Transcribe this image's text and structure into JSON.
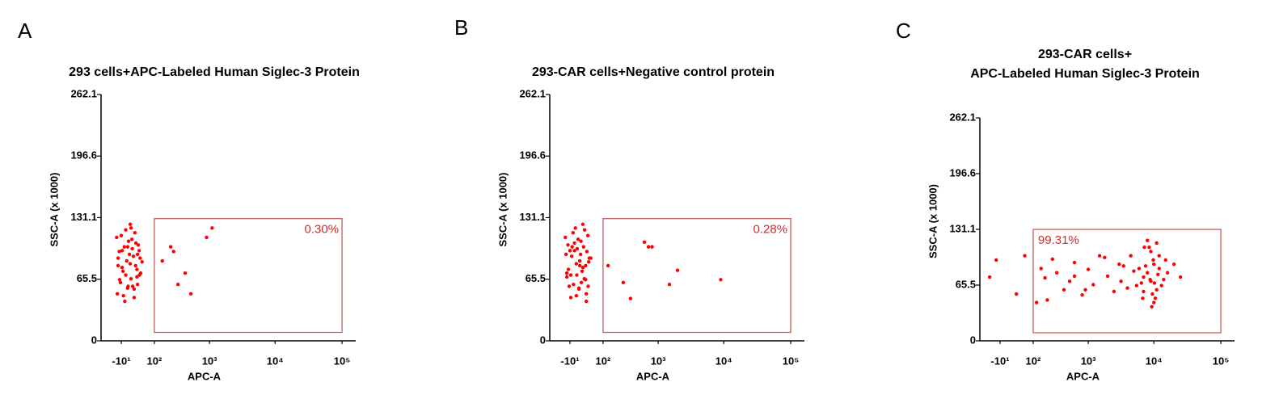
{
  "chart_data": [
    {
      "type": "scatter",
      "panel_label": "A",
      "title": [
        "293 cells+APC-Labeled Human Siglec-3 Protein"
      ],
      "x_label": "APC-A",
      "y_label": "SSC-A (x 1000)",
      "x_scale": "biexponential",
      "color": "#ff0000",
      "xlim": [
        -80,
        160000
      ],
      "ylim": [
        0,
        262.1
      ],
      "xticks": [
        {
          "value": -10,
          "label": "-10¹"
        },
        {
          "value": 100,
          "label": "10²"
        },
        {
          "value": 1000,
          "label": "10³"
        },
        {
          "value": 10000,
          "label": "10⁴"
        },
        {
          "value": 100000,
          "label": "10⁵"
        }
      ],
      "yticks": [
        0,
        65.5,
        131.1,
        196.6,
        262.1
      ],
      "gate": {
        "x": [
          100,
          100000
        ],
        "y": [
          9,
          130
        ],
        "percent": {
          "value": 0.3,
          "label": "0.30%"
        },
        "label_corner": "top-right",
        "color": "#c0504d"
      },
      "x": [
        -20,
        -12,
        -5,
        0,
        5,
        12,
        20,
        30,
        40,
        -18,
        -8,
        2,
        10,
        18,
        28,
        38,
        -15,
        -3,
        8,
        15,
        25,
        35,
        -22,
        -10,
        0,
        6,
        14,
        22,
        32,
        45,
        -14,
        -6,
        4,
        12,
        20,
        28,
        -18,
        -2,
        10,
        24,
        36,
        -8,
        4,
        16,
        30,
        150,
        220,
        300,
        400,
        500,
        900,
        1100,
        250
      ],
      "y": [
        50,
        62,
        48,
        70,
        58,
        66,
        55,
        60,
        72,
        80,
        78,
        85,
        82,
        90,
        76,
        88,
        95,
        100,
        92,
        98,
        104,
        96,
        110,
        112,
        118,
        106,
        108,
        115,
        102,
        84,
        65,
        74,
        56,
        120,
        46,
        68,
        88,
        42,
        124,
        80,
        70,
        96,
        100,
        58,
        92,
        85,
        100,
        60,
        72,
        50,
        110,
        120,
        95
      ]
    },
    {
      "type": "scatter",
      "panel_label": "B",
      "title": [
        "293-CAR cells+Negative control protein"
      ],
      "x_label": "APC-A",
      "y_label": "SSC-A (x 1000)",
      "x_scale": "biexponential",
      "color": "#ff0000",
      "xlim": [
        -80,
        160000
      ],
      "ylim": [
        0,
        262.1
      ],
      "xticks": [
        {
          "value": -10,
          "label": "-10¹"
        },
        {
          "value": 100,
          "label": "10²"
        },
        {
          "value": 1000,
          "label": "10³"
        },
        {
          "value": 10000,
          "label": "10⁴"
        },
        {
          "value": 100000,
          "label": "10⁵"
        }
      ],
      "yticks": [
        0,
        65.5,
        131.1,
        196.6,
        262.1
      ],
      "gate": {
        "x": [
          100,
          100000
        ],
        "y": [
          9,
          130
        ],
        "percent": {
          "value": 0.28,
          "label": "0.28%"
        },
        "label_corner": "top-right",
        "color": "#c0504d"
      },
      "x": [
        -20,
        -12,
        -5,
        0,
        5,
        12,
        20,
        30,
        40,
        -18,
        -8,
        2,
        10,
        18,
        28,
        38,
        -15,
        -3,
        8,
        15,
        25,
        35,
        -22,
        -10,
        0,
        6,
        14,
        22,
        32,
        45,
        -14,
        -6,
        4,
        12,
        20,
        28,
        -18,
        -2,
        10,
        24,
        36,
        -8,
        4,
        16,
        30,
        130,
        260,
        600,
        800,
        1500,
        2000,
        9000,
        350,
        700
      ],
      "y": [
        92,
        58,
        100,
        96,
        70,
        80,
        124,
        42,
        88,
        68,
        46,
        120,
        56,
        74,
        65,
        84,
        102,
        115,
        108,
        106,
        118,
        112,
        110,
        96,
        104,
        98,
        92,
        100,
        95,
        88,
        76,
        90,
        82,
        85,
        78,
        80,
        72,
        60,
        55,
        66,
        58,
        70,
        48,
        62,
        50,
        80,
        62,
        105,
        100,
        60,
        75,
        65,
        45,
        100
      ]
    },
    {
      "type": "scatter",
      "panel_label": "C",
      "title": [
        "293-CAR cells+",
        "APC-Labeled Human Siglec-3 Protein"
      ],
      "x_label": "APC-A",
      "y_label": "SSC-A (x 1000)",
      "x_scale": "biexponential",
      "color": "#ff0000",
      "xlim": [
        -80,
        160000
      ],
      "ylim": [
        0,
        262.1
      ],
      "xticks": [
        {
          "value": -10,
          "label": "-10¹"
        },
        {
          "value": 100,
          "label": "10²"
        },
        {
          "value": 1000,
          "label": "10³"
        },
        {
          "value": 10000,
          "label": "10⁴"
        },
        {
          "value": 100000,
          "label": "10⁵"
        }
      ],
      "yticks": [
        0,
        65.5,
        131.1,
        196.6,
        262.1
      ],
      "gate": {
        "x": [
          100,
          100000
        ],
        "y": [
          9.5,
          131
        ],
        "percent": {
          "value": 99.31,
          "label": "99.31%"
        },
        "label_corner": "top-left",
        "color": "#c0504d"
      },
      "x": [
        8000,
        9000,
        10000,
        11000,
        12000,
        7000,
        6000,
        13000,
        15000,
        9500,
        8500,
        10500,
        11500,
        7500,
        6500,
        14000,
        5000,
        4000,
        3000,
        2500,
        2000,
        1500,
        1200,
        1000,
        800,
        600,
        500,
        400,
        300,
        250,
        200,
        180,
        9000,
        10000,
        11000,
        8000,
        12000,
        7000,
        9800,
        10200,
        8800,
        9300,
        16000,
        20000,
        25000,
        5500,
        4500,
        3500,
        6800,
        7200,
        600,
        900,
        1800,
        3200,
        150,
        120,
        -40,
        -20,
        30,
        60
      ],
      "y": [
        80,
        70,
        90,
        60,
        100,
        75,
        85,
        65,
        95,
        55,
        110,
        50,
        78,
        88,
        68,
        72,
        82,
        62,
        90,
        58,
        76,
        100,
        66,
        84,
        54,
        92,
        70,
        60,
        80,
        96,
        48,
        74,
        105,
        45,
        115,
        118,
        85,
        58,
        95,
        68,
        72,
        40,
        80,
        90,
        75,
        65,
        100,
        88,
        50,
        110,
        76,
        60,
        98,
        70,
        85,
        45,
        75,
        95,
        55,
        100
      ]
    }
  ]
}
